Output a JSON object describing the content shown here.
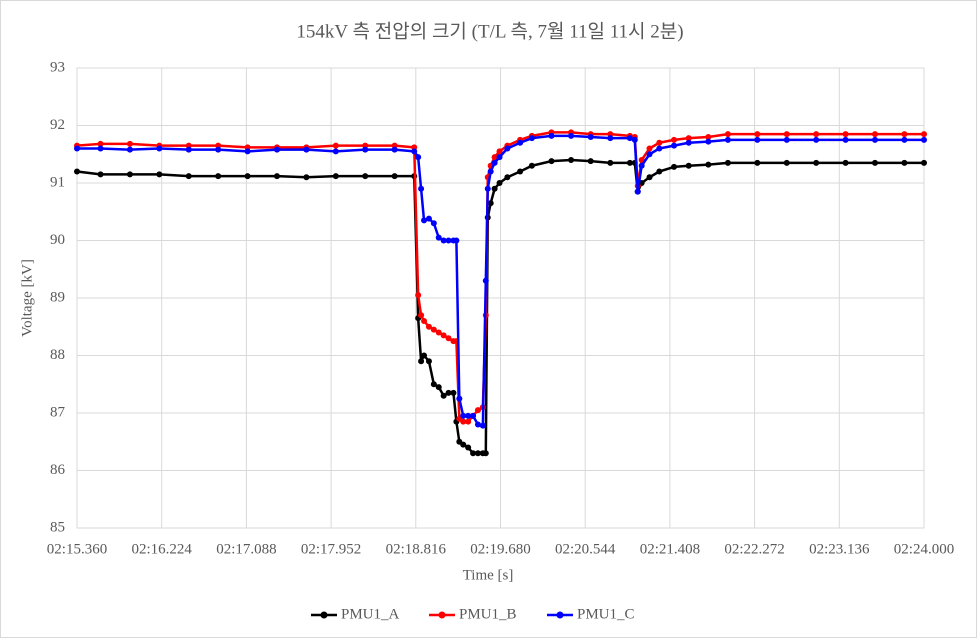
{
  "chart_data": {
    "type": "line",
    "title": "154kV 측 전압의 크기 (T/L 측, 7월 11일 11시 2분)",
    "x_label": "Time [s]",
    "y_label": "Voltage [kV]",
    "x": [
      135.36,
      135.6,
      135.9,
      136.2,
      136.5,
      136.8,
      137.1,
      137.4,
      137.7,
      138.0,
      138.3,
      138.6,
      138.8,
      138.84,
      138.87,
      138.9,
      138.95,
      139.0,
      139.05,
      139.1,
      139.15,
      139.2,
      139.23,
      139.26,
      139.3,
      139.35,
      139.4,
      139.45,
      139.5,
      139.53,
      139.55,
      139.58,
      139.62,
      139.67,
      139.75,
      139.88,
      140.0,
      140.2,
      140.4,
      140.6,
      140.8,
      141.0,
      141.05,
      141.08,
      141.12,
      141.2,
      141.3,
      141.45,
      141.6,
      141.8,
      142.0,
      142.3,
      142.6,
      142.9,
      143.2,
      143.5,
      143.8,
      144.0
    ],
    "series": [
      {
        "name": "PMU1_A",
        "color": "#000000",
        "values": [
          91.2,
          91.15,
          91.15,
          91.15,
          91.12,
          91.12,
          91.12,
          91.12,
          91.1,
          91.12,
          91.12,
          91.12,
          91.12,
          88.65,
          87.9,
          88.0,
          87.9,
          87.5,
          87.45,
          87.3,
          87.35,
          87.35,
          86.85,
          86.5,
          86.45,
          86.4,
          86.3,
          86.3,
          86.3,
          86.3,
          90.4,
          90.65,
          90.9,
          91.0,
          91.1,
          91.2,
          91.3,
          91.38,
          91.4,
          91.38,
          91.35,
          91.35,
          91.35,
          90.85,
          91.0,
          91.1,
          91.2,
          91.28,
          91.3,
          91.32,
          91.35,
          91.35,
          91.35,
          91.35,
          91.35,
          91.35,
          91.35,
          91.35
        ]
      },
      {
        "name": "PMU1_B",
        "color": "#ff0000",
        "values": [
          91.65,
          91.68,
          91.68,
          91.65,
          91.65,
          91.65,
          91.62,
          91.62,
          91.62,
          91.65,
          91.65,
          91.65,
          91.62,
          89.05,
          88.7,
          88.6,
          88.5,
          88.45,
          88.4,
          88.35,
          88.3,
          88.25,
          88.25,
          86.9,
          86.85,
          86.85,
          86.95,
          87.05,
          87.1,
          88.7,
          91.1,
          91.3,
          91.45,
          91.55,
          91.65,
          91.75,
          91.82,
          91.88,
          91.88,
          91.85,
          91.85,
          91.82,
          91.8,
          90.95,
          91.4,
          91.6,
          91.7,
          91.75,
          91.78,
          91.8,
          91.85,
          91.85,
          91.85,
          91.85,
          91.85,
          91.85,
          91.85,
          91.85
        ]
      },
      {
        "name": "PMU1_C",
        "color": "#0000ff",
        "values": [
          91.6,
          91.6,
          91.58,
          91.6,
          91.58,
          91.58,
          91.55,
          91.58,
          91.58,
          91.55,
          91.58,
          91.58,
          91.55,
          91.45,
          90.9,
          90.35,
          90.38,
          90.3,
          90.05,
          90.0,
          90.0,
          90.0,
          90.0,
          87.25,
          86.95,
          86.95,
          86.95,
          86.8,
          86.78,
          89.3,
          90.9,
          91.2,
          91.35,
          91.45,
          91.6,
          91.7,
          91.78,
          91.82,
          91.82,
          91.8,
          91.78,
          91.78,
          91.75,
          90.85,
          91.3,
          91.5,
          91.6,
          91.65,
          91.7,
          91.72,
          91.75,
          91.75,
          91.75,
          91.75,
          91.75,
          91.75,
          91.75,
          91.75
        ]
      }
    ],
    "xlim": [
      135.36,
      144.0
    ],
    "xticks": [
      {
        "value": 135.36,
        "label": "02:15.360"
      },
      {
        "value": 136.224,
        "label": "02:16.224"
      },
      {
        "value": 137.088,
        "label": "02:17.088"
      },
      {
        "value": 137.952,
        "label": "02:17.952"
      },
      {
        "value": 138.816,
        "label": "02:18.816"
      },
      {
        "value": 139.68,
        "label": "02:19.680"
      },
      {
        "value": 140.544,
        "label": "02:20.544"
      },
      {
        "value": 141.408,
        "label": "02:21.408"
      },
      {
        "value": 142.272,
        "label": "02:22.272"
      },
      {
        "value": 143.136,
        "label": "02:23.136"
      },
      {
        "value": 144.0,
        "label": "02:24.000"
      }
    ],
    "ylim": [
      85,
      93
    ],
    "yticks": [
      85,
      86,
      87,
      88,
      89,
      90,
      91,
      92,
      93
    ],
    "grid": true,
    "legend": "bottom"
  }
}
